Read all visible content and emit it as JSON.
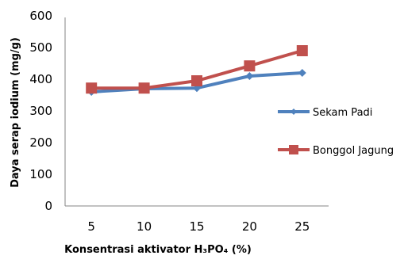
{
  "chart_data": {
    "type": "line",
    "title": "",
    "xlabel": "Konsentrasi aktivator H₃PO₄ (%)",
    "ylabel": "Daya serap iodium (mg/g)",
    "categories": [
      "5",
      "10",
      "15",
      "20",
      "25"
    ],
    "y_ticks": [
      "0",
      "100",
      "200",
      "300",
      "400",
      "500",
      "600"
    ],
    "ylim": [
      0,
      600
    ],
    "grid": false,
    "legend_position": "right",
    "series": [
      {
        "name": "Sekam Padi",
        "values": [
          360,
          370,
          372,
          410,
          420
        ],
        "color": "#4f81bd",
        "marker": "diamond"
      },
      {
        "name": "Bonggol Jagung",
        "values": [
          372,
          372,
          395,
          442,
          490
        ],
        "color": "#c0504d",
        "marker": "square"
      }
    ]
  }
}
